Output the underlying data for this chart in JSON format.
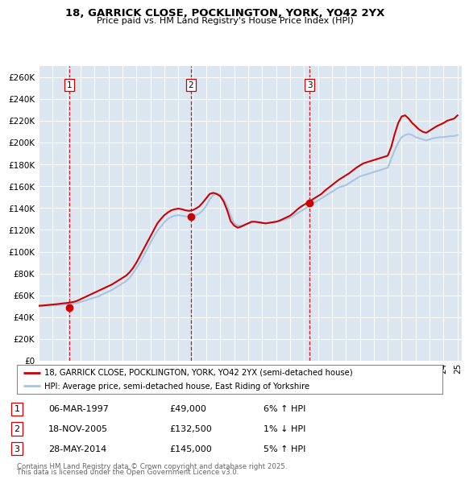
{
  "title1": "18, GARRICK CLOSE, POCKLINGTON, YORK, YO42 2YX",
  "title2": "Price paid vs. HM Land Registry's House Price Index (HPI)",
  "ylim": [
    0,
    270000
  ],
  "yticks": [
    0,
    20000,
    40000,
    60000,
    80000,
    100000,
    120000,
    140000,
    160000,
    180000,
    200000,
    220000,
    240000,
    260000
  ],
  "ytick_labels": [
    "£0",
    "£20K",
    "£40K",
    "£60K",
    "£80K",
    "£100K",
    "£120K",
    "£140K",
    "£160K",
    "£180K",
    "£200K",
    "£220K",
    "£240K",
    "£260K"
  ],
  "sale_dates": [
    1997.18,
    2005.89,
    2014.41
  ],
  "sale_prices": [
    49000,
    132500,
    145000
  ],
  "sale_labels": [
    "1",
    "2",
    "3"
  ],
  "sale_date_strs": [
    "06-MAR-1997",
    "18-NOV-2005",
    "28-MAY-2014"
  ],
  "sale_price_strs": [
    "£49,000",
    "£132,500",
    "£145,000"
  ],
  "sale_hpi_strs": [
    "6% ↑ HPI",
    "1% ↓ HPI",
    "5% ↑ HPI"
  ],
  "hpi_line_color": "#a8c4e0",
  "price_line_color": "#cc0000",
  "sale_dot_color": "#cc0000",
  "dashed_color": "#cc0000",
  "plot_bg": "#dce6f1",
  "legend_label1": "18, GARRICK CLOSE, POCKLINGTON, YORK, YO42 2YX (semi-detached house)",
  "legend_label2": "HPI: Average price, semi-detached house, East Riding of Yorkshire",
  "footer1": "Contains HM Land Registry data © Crown copyright and database right 2025.",
  "footer2": "This data is licensed under the Open Government Licence v3.0.",
  "hpi_years": [
    1995.0,
    1995.25,
    1995.5,
    1995.75,
    1996.0,
    1996.25,
    1996.5,
    1996.75,
    1997.0,
    1997.25,
    1997.5,
    1997.75,
    1998.0,
    1998.25,
    1998.5,
    1998.75,
    1999.0,
    1999.25,
    1999.5,
    1999.75,
    2000.0,
    2000.25,
    2000.5,
    2000.75,
    2001.0,
    2001.25,
    2001.5,
    2001.75,
    2002.0,
    2002.25,
    2002.5,
    2002.75,
    2003.0,
    2003.25,
    2003.5,
    2003.75,
    2004.0,
    2004.25,
    2004.5,
    2004.75,
    2005.0,
    2005.25,
    2005.5,
    2005.75,
    2006.0,
    2006.25,
    2006.5,
    2006.75,
    2007.0,
    2007.25,
    2007.5,
    2007.75,
    2008.0,
    2008.25,
    2008.5,
    2008.75,
    2009.0,
    2009.25,
    2009.5,
    2009.75,
    2010.0,
    2010.25,
    2010.5,
    2010.75,
    2011.0,
    2011.25,
    2011.5,
    2011.75,
    2012.0,
    2012.25,
    2012.5,
    2012.75,
    2013.0,
    2013.25,
    2013.5,
    2013.75,
    2014.0,
    2014.25,
    2014.5,
    2014.75,
    2015.0,
    2015.25,
    2015.5,
    2015.75,
    2016.0,
    2016.25,
    2016.5,
    2016.75,
    2017.0,
    2017.25,
    2017.5,
    2017.75,
    2018.0,
    2018.25,
    2018.5,
    2018.75,
    2019.0,
    2019.25,
    2019.5,
    2019.75,
    2020.0,
    2020.25,
    2020.5,
    2020.75,
    2021.0,
    2021.25,
    2021.5,
    2021.75,
    2022.0,
    2022.25,
    2022.5,
    2022.75,
    2023.0,
    2023.25,
    2023.5,
    2023.75,
    2024.0,
    2024.25,
    2024.5,
    2024.75,
    2025.0
  ],
  "hpi_values": [
    50000,
    50200,
    50400,
    50600,
    50800,
    51000,
    51200,
    51500,
    51800,
    52000,
    52500,
    53000,
    54000,
    55000,
    56000,
    57000,
    58000,
    59000,
    60500,
    62000,
    63500,
    65000,
    67000,
    69000,
    71000,
    73000,
    76000,
    80000,
    85000,
    90000,
    96000,
    102000,
    108000,
    114000,
    119000,
    123000,
    127000,
    130000,
    132000,
    133000,
    133500,
    133000,
    132500,
    132000,
    132500,
    133500,
    135000,
    138000,
    142000,
    148000,
    152000,
    153000,
    152000,
    148000,
    142000,
    133000,
    126000,
    124000,
    124000,
    125000,
    126000,
    127000,
    127500,
    127000,
    126500,
    126000,
    126500,
    127000,
    127500,
    128000,
    129000,
    130000,
    131000,
    133000,
    135000,
    137000,
    139000,
    141000,
    143000,
    145000,
    147000,
    149000,
    151000,
    153000,
    155000,
    157000,
    159000,
    160000,
    161000,
    163000,
    165000,
    167000,
    169000,
    170000,
    171000,
    172000,
    173000,
    174000,
    175000,
    176000,
    177000,
    185000,
    193000,
    200000,
    205000,
    207000,
    208000,
    207000,
    205000,
    204000,
    203000,
    202000,
    203000,
    204000,
    204500,
    205000,
    205000,
    205500,
    206000,
    206000,
    207000
  ],
  "price_years": [
    1995.0,
    1995.25,
    1995.5,
    1995.75,
    1996.0,
    1996.25,
    1996.5,
    1996.75,
    1997.0,
    1997.25,
    1997.5,
    1997.75,
    1998.0,
    1998.25,
    1998.5,
    1998.75,
    1999.0,
    1999.25,
    1999.5,
    1999.75,
    2000.0,
    2000.25,
    2000.5,
    2000.75,
    2001.0,
    2001.25,
    2001.5,
    2001.75,
    2002.0,
    2002.25,
    2002.5,
    2002.75,
    2003.0,
    2003.25,
    2003.5,
    2003.75,
    2004.0,
    2004.25,
    2004.5,
    2004.75,
    2005.0,
    2005.25,
    2005.5,
    2005.75,
    2006.0,
    2006.25,
    2006.5,
    2006.75,
    2007.0,
    2007.25,
    2007.5,
    2007.75,
    2008.0,
    2008.25,
    2008.5,
    2008.75,
    2009.0,
    2009.25,
    2009.5,
    2009.75,
    2010.0,
    2010.25,
    2010.5,
    2010.75,
    2011.0,
    2011.25,
    2011.5,
    2011.75,
    2012.0,
    2012.25,
    2012.5,
    2012.75,
    2013.0,
    2013.25,
    2013.5,
    2013.75,
    2014.0,
    2014.25,
    2014.5,
    2014.75,
    2015.0,
    2015.25,
    2015.5,
    2015.75,
    2016.0,
    2016.25,
    2016.5,
    2016.75,
    2017.0,
    2017.25,
    2017.5,
    2017.75,
    2018.0,
    2018.25,
    2018.5,
    2018.75,
    2019.0,
    2019.25,
    2019.5,
    2019.75,
    2020.0,
    2020.25,
    2020.5,
    2020.75,
    2021.0,
    2021.25,
    2021.5,
    2021.75,
    2022.0,
    2022.25,
    2022.5,
    2022.75,
    2023.0,
    2023.25,
    2023.5,
    2023.75,
    2024.0,
    2024.25,
    2024.5,
    2024.75,
    2025.0
  ],
  "price_values": [
    50500,
    50700,
    51000,
    51300,
    51600,
    51900,
    52300,
    52700,
    53000,
    53500,
    54000,
    55000,
    56500,
    58000,
    59500,
    61000,
    62500,
    64000,
    65500,
    67000,
    68500,
    70000,
    72000,
    74000,
    76000,
    78000,
    81000,
    85000,
    90000,
    96000,
    102000,
    108000,
    114000,
    120000,
    126000,
    130000,
    133500,
    136000,
    138000,
    139000,
    139500,
    139000,
    138000,
    137500,
    138000,
    139500,
    141500,
    145000,
    149000,
    153000,
    154000,
    153000,
    151000,
    146000,
    138000,
    128000,
    124000,
    122000,
    123000,
    124500,
    126000,
    127500,
    127500,
    127000,
    126500,
    126000,
    126500,
    127000,
    127500,
    128500,
    130000,
    131500,
    133000,
    135500,
    138500,
    141000,
    143000,
    145000,
    147000,
    149000,
    151000,
    153000,
    156000,
    158500,
    161000,
    163500,
    166000,
    168000,
    170000,
    172000,
    174500,
    177000,
    179000,
    181000,
    182000,
    183000,
    184000,
    185000,
    186000,
    187000,
    188000,
    196000,
    208000,
    218000,
    224000,
    225000,
    222000,
    218000,
    215000,
    212000,
    210000,
    209000,
    211000,
    213000,
    215000,
    216500,
    218000,
    220000,
    221000,
    222000,
    225000
  ]
}
